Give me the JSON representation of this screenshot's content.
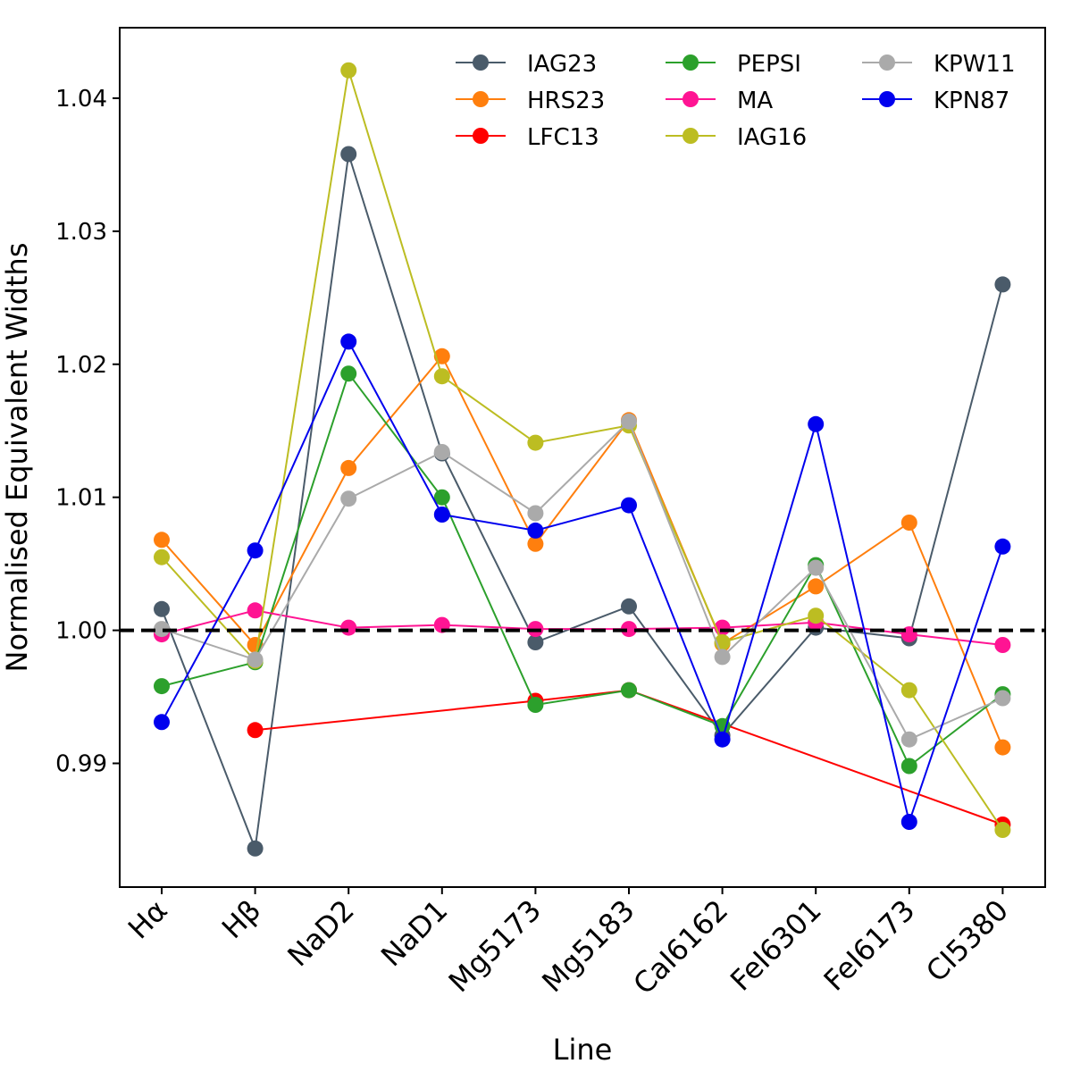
{
  "chart_data": {
    "type": "line",
    "title": "",
    "xlabel": "Line",
    "ylabel": "Normalised Equivalent Widths",
    "categories": [
      "Hα",
      "Hβ",
      "NaD2",
      "NaD1",
      "Mg5173",
      "Mg5183",
      "CaI6162",
      "FeI6301",
      "FeI6173",
      "CI5380"
    ],
    "ylim": [
      0.9807,
      1.0453
    ],
    "yticks": [
      0.99,
      1.0,
      1.01,
      1.02,
      1.03,
      1.04
    ],
    "ytick_labels": [
      "0.99",
      "1.00",
      "1.01",
      "1.02",
      "1.03",
      "1.04"
    ],
    "reference_line": {
      "y": 1.0,
      "style": "dashed",
      "color": "#000000"
    },
    "legend": {
      "placement": "top-right",
      "columns": 3
    },
    "series": [
      {
        "name": "IAG23",
        "color": "#4a5b6a",
        "values": [
          1.0016,
          0.9836,
          1.0358,
          1.0133,
          0.9991,
          1.0018,
          0.9921,
          1.0002,
          0.9994,
          1.026
        ]
      },
      {
        "name": "HRS23",
        "color": "#ff7f0e",
        "values": [
          1.0068,
          0.9989,
          1.0122,
          1.0206,
          1.0065,
          1.0158,
          0.999,
          1.0033,
          1.0081,
          0.9912
        ]
      },
      {
        "name": "LFC13",
        "color": "#ff0000",
        "values": [
          null,
          0.9925,
          null,
          null,
          0.9947,
          0.9955,
          null,
          null,
          null,
          0.9854
        ]
      },
      {
        "name": "PEPSI",
        "color": "#2ca02c",
        "values": [
          0.9958,
          0.9976,
          1.0193,
          1.01,
          0.9944,
          0.9955,
          0.9928,
          1.0049,
          0.9898,
          0.9952
        ]
      },
      {
        "name": "MA",
        "color": "#ff1493",
        "values": [
          0.9997,
          1.0015,
          1.0002,
          1.0004,
          1.0001,
          1.0001,
          1.0002,
          1.0006,
          0.9997,
          0.9989
        ]
      },
      {
        "name": "IAG16",
        "color": "#bcbd22",
        "values": [
          1.0055,
          0.9977,
          1.0421,
          1.0191,
          1.0141,
          1.0154,
          0.9991,
          1.0011,
          0.9955,
          0.985
        ]
      },
      {
        "name": "KPW11",
        "color": "#aaaaaa",
        "values": [
          1.0001,
          0.9978,
          1.0099,
          1.0134,
          1.0088,
          1.0157,
          0.998,
          1.0047,
          0.9918,
          0.9949
        ]
      },
      {
        "name": "KPN87",
        "color": "#0000ee",
        "values": [
          0.9931,
          1.006,
          1.0217,
          1.0087,
          1.0075,
          1.0094,
          0.9918,
          1.0155,
          0.9856,
          1.0063
        ]
      }
    ]
  }
}
